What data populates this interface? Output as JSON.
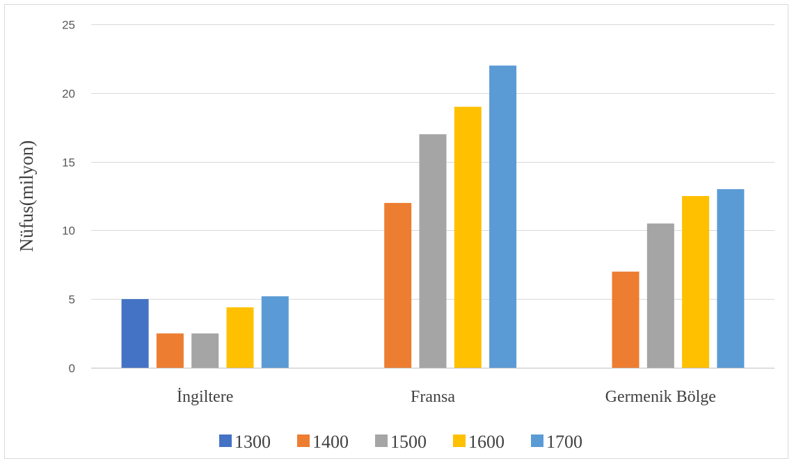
{
  "chart_data": {
    "type": "bar",
    "title": "",
    "xlabel": "",
    "ylabel": "Nüfus(milyon)",
    "ylim": [
      0,
      25
    ],
    "yticks": [
      0,
      5,
      10,
      15,
      20,
      25
    ],
    "grid": true,
    "legend_position": "bottom",
    "categories": [
      "İngiltere",
      "Fransa",
      "Germenik Bölge"
    ],
    "series": [
      {
        "name": "1300",
        "color": "#4472c4",
        "values": [
          5,
          null,
          null
        ]
      },
      {
        "name": "1400",
        "color": "#ed7d31",
        "values": [
          2.5,
          12,
          7
        ]
      },
      {
        "name": "1500",
        "color": "#a5a5a5",
        "values": [
          2.5,
          17,
          10.5
        ]
      },
      {
        "name": "1600",
        "color": "#ffc000",
        "values": [
          4.4,
          19,
          12.5
        ]
      },
      {
        "name": "1700",
        "color": "#5b9bd5",
        "values": [
          5.2,
          22,
          13
        ]
      }
    ]
  }
}
